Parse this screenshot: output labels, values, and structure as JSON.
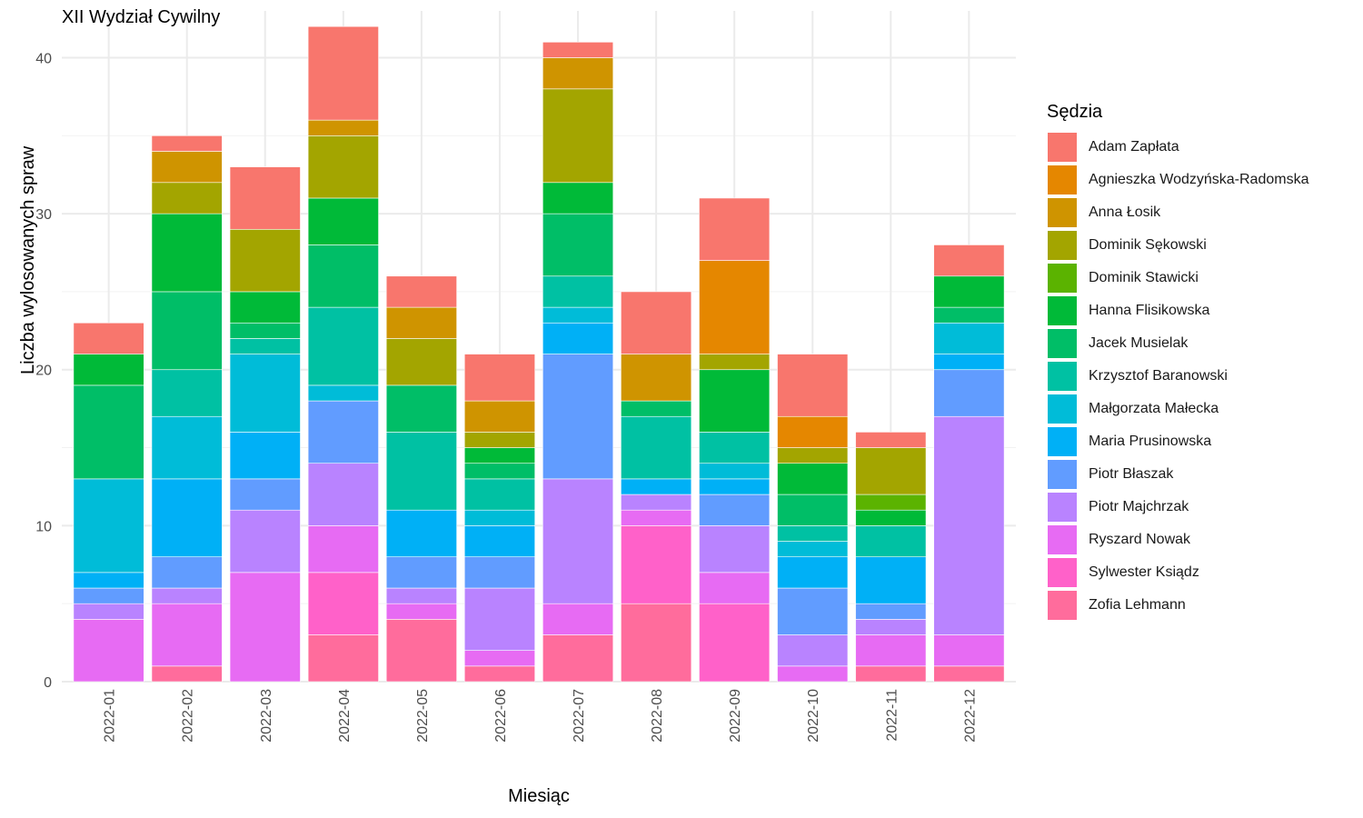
{
  "chart_data": {
    "type": "bar",
    "stacked": true,
    "title": "XII Wydział Cywilny",
    "xlabel": "Miesiąc",
    "ylabel": "Liczba wylosowanych spraw",
    "legend_title": "Sędzia",
    "legend_position": "right",
    "grid": true,
    "ylim": [
      0,
      43
    ],
    "yticks": [
      0,
      10,
      20,
      30,
      40
    ],
    "categories": [
      "2022-01",
      "2022-02",
      "2022-03",
      "2022-04",
      "2022-05",
      "2022-06",
      "2022-07",
      "2022-08",
      "2022-09",
      "2022-10",
      "2022-11",
      "2022-12"
    ],
    "series": [
      {
        "name": "Zofia Lehmann",
        "color": "#FF6C9C",
        "values": [
          0,
          1,
          0,
          3,
          4,
          1,
          3,
          5,
          0,
          0,
          1,
          1
        ]
      },
      {
        "name": "Sylwester Ksiądz",
        "color": "#FF61C9",
        "values": [
          0,
          0,
          0,
          4,
          0,
          0,
          0,
          5,
          5,
          0,
          0,
          0
        ]
      },
      {
        "name": "Ryszard Nowak",
        "color": "#E76BF3",
        "values": [
          4,
          4,
          7,
          3,
          1,
          1,
          2,
          1,
          2,
          1,
          2,
          2
        ]
      },
      {
        "name": "Piotr Majchrzak",
        "color": "#B983FF",
        "values": [
          1,
          1,
          4,
          4,
          1,
          4,
          8,
          1,
          3,
          2,
          1,
          14
        ]
      },
      {
        "name": "Piotr Błaszak",
        "color": "#619CFF",
        "values": [
          1,
          2,
          2,
          4,
          2,
          2,
          8,
          0,
          2,
          3,
          1,
          3
        ]
      },
      {
        "name": "Maria Prusinowska",
        "color": "#00B0F6",
        "values": [
          1,
          5,
          3,
          0,
          3,
          2,
          2,
          1,
          1,
          2,
          3,
          1
        ]
      },
      {
        "name": "Małgorzata Małecka",
        "color": "#00BCD8",
        "values": [
          6,
          4,
          5,
          1,
          0,
          1,
          1,
          0,
          1,
          1,
          0,
          2
        ]
      },
      {
        "name": "Krzysztof Baranowski",
        "color": "#00C1A3",
        "values": [
          0,
          3,
          1,
          5,
          5,
          2,
          2,
          4,
          2,
          1,
          2,
          0
        ]
      },
      {
        "name": "Jacek Musielak",
        "color": "#00BE67",
        "values": [
          6,
          5,
          1,
          4,
          3,
          1,
          4,
          1,
          0,
          2,
          0,
          1
        ]
      },
      {
        "name": "Hanna Flisikowska",
        "color": "#00BA38",
        "values": [
          2,
          5,
          2,
          3,
          0,
          1,
          2,
          0,
          4,
          2,
          1,
          2
        ]
      },
      {
        "name": "Dominik Stawicki",
        "color": "#5BB300",
        "values": [
          0,
          0,
          0,
          0,
          0,
          0,
          0,
          0,
          0,
          0,
          1,
          0
        ]
      },
      {
        "name": "Dominik Sękowski",
        "color": "#A3A500",
        "values": [
          0,
          2,
          4,
          4,
          3,
          1,
          6,
          0,
          1,
          1,
          3,
          0
        ]
      },
      {
        "name": "Anna Łosik",
        "color": "#CF9400",
        "values": [
          0,
          2,
          0,
          1,
          2,
          2,
          2,
          3,
          0,
          0,
          0,
          0
        ]
      },
      {
        "name": "Agnieszka Wodzyńska-Radomska",
        "color": "#E58700",
        "values": [
          0,
          0,
          0,
          0,
          0,
          0,
          0,
          0,
          6,
          2,
          0,
          0
        ]
      },
      {
        "name": "Adam Zapłata",
        "color": "#F8766D",
        "values": [
          2,
          1,
          4,
          6,
          2,
          3,
          1,
          4,
          4,
          4,
          1,
          2
        ]
      }
    ],
    "legend_order": [
      "Adam Zapłata",
      "Agnieszka Wodzyńska-Radomska",
      "Anna Łosik",
      "Dominik Sękowski",
      "Dominik Stawicki",
      "Hanna Flisikowska",
      "Jacek Musielak",
      "Krzysztof Baranowski",
      "Małgorzata Małecka",
      "Maria Prusinowska",
      "Piotr Błaszak",
      "Piotr Majchrzak",
      "Ryszard Nowak",
      "Sylwester Ksiądz",
      "Zofia Lehmann"
    ]
  }
}
